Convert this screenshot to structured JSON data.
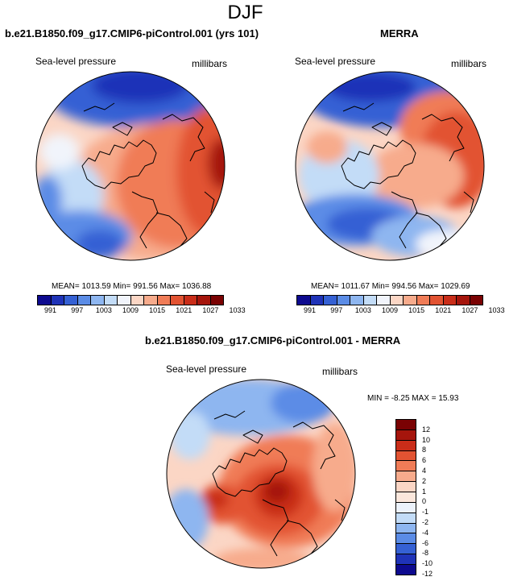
{
  "figure": {
    "title": "DJF"
  },
  "palettes": {
    "abs": [
      "#0d0a8f",
      "#1f33b8",
      "#3561d4",
      "#5b8ce6",
      "#8eb6f0",
      "#c3dcf7",
      "#f1f4fb",
      "#fbd6c5",
      "#f7ab8c",
      "#f07c57",
      "#e25332",
      "#c92d19",
      "#a5150c",
      "#7a0203"
    ],
    "diff": [
      "#0d0a8f",
      "#1f33b8",
      "#3561d4",
      "#5b8ce6",
      "#8eb6f0",
      "#c3dcf7",
      "#ecf2fb",
      "#fbe7dc",
      "#fbd6c5",
      "#f7ab8c",
      "#f07c57",
      "#e25332",
      "#c92d19",
      "#a5150c",
      "#7a0203"
    ]
  },
  "chart_data": [
    {
      "type": "heatmap",
      "title": "b.e21.B1850.f09_g17.CMIP6-piControl.001 (yrs 101)",
      "left_label": "Sea-level pressure",
      "right_label": "millibars",
      "stats": "MEAN= 1013.59  Min= 991.56  Max= 1036.88",
      "mean": 1013.59,
      "min": 991.56,
      "max": 1036.88,
      "levels": [
        "991",
        "997",
        "1003",
        "1009",
        "1015",
        "1021",
        "1027",
        "1033"
      ]
    },
    {
      "type": "heatmap",
      "title": "MERRA",
      "left_label": "Sea-level pressure",
      "right_label": "millibars",
      "stats": "MEAN= 1011.67  Min= 994.56  Max= 1029.69",
      "mean": 1011.67,
      "min": 994.56,
      "max": 1029.69,
      "levels": [
        "991",
        "997",
        "1003",
        "1009",
        "1015",
        "1021",
        "1027",
        "1033"
      ]
    },
    {
      "type": "heatmap",
      "title": "b.e21.B1850.f09_g17.CMIP6-piControl.001 - MERRA",
      "left_label": "Sea-level pressure",
      "right_label": "millibars",
      "stats": "MIN = -8.25 MAX = 15.93",
      "min": -8.25,
      "max": 15.93,
      "levels": [
        "12",
        "10",
        "8",
        "6",
        "4",
        "2",
        "1",
        "0",
        "-1",
        "-2",
        "-4",
        "-6",
        "-8",
        "-10",
        "-12"
      ]
    }
  ]
}
